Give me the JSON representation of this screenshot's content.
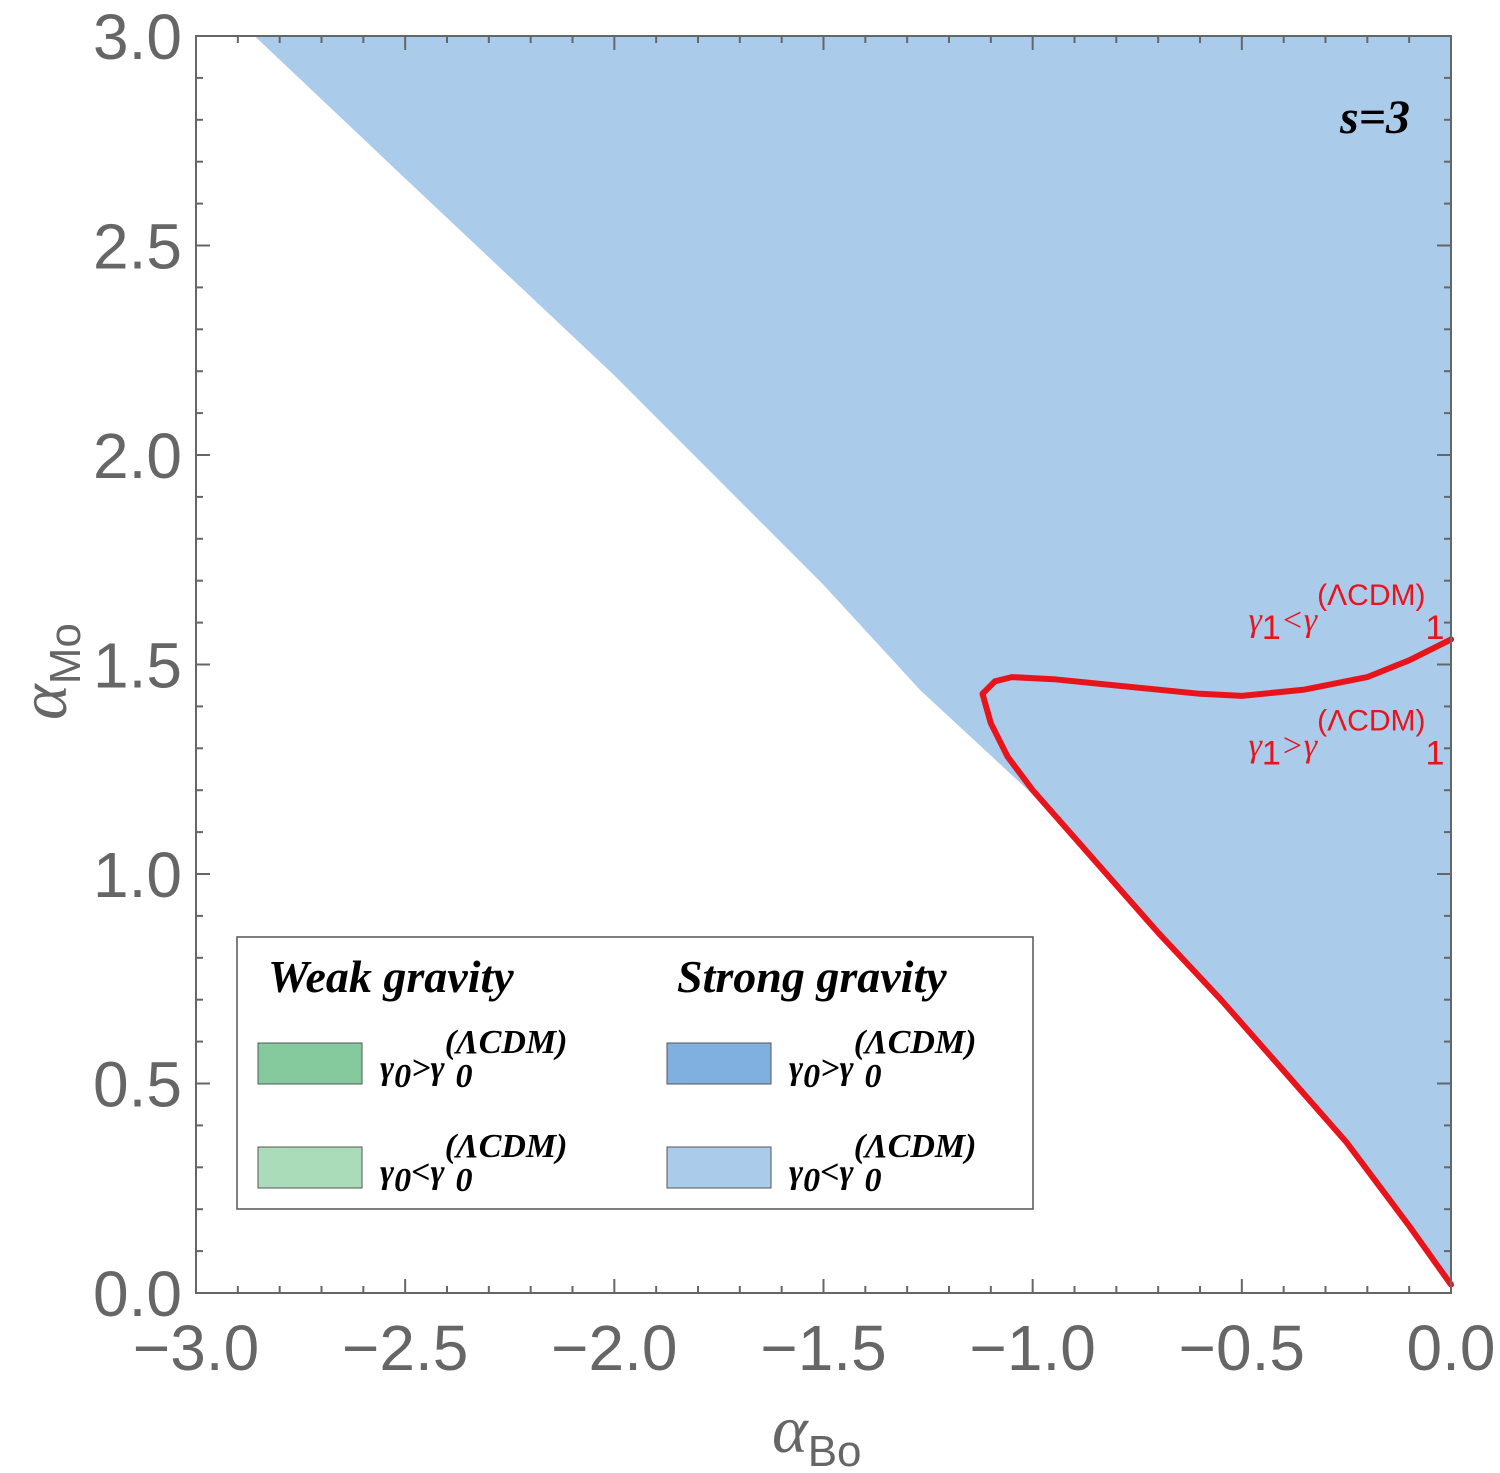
{
  "chart_data": {
    "type": "region",
    "title": "",
    "panel_label": "s=3",
    "xlabel": {
      "symbol": "α",
      "subscript": "Bo"
    },
    "ylabel": {
      "symbol": "α",
      "subscript": "Mo"
    },
    "xlim": [
      -3.0,
      0.0
    ],
    "ylim": [
      0.0,
      3.0
    ],
    "xticks": [
      -3.0,
      -2.5,
      -2.0,
      -1.5,
      -1.0,
      -0.5,
      0.0
    ],
    "xtick_labels": [
      "−3.0",
      "−2.5",
      "−2.0",
      "−1.5",
      "−1.0",
      "−0.5",
      "0.0"
    ],
    "yticks": [
      0.0,
      0.5,
      1.0,
      1.5,
      2.0,
      2.5,
      3.0
    ],
    "ytick_labels": [
      "0.0",
      "0.5",
      "1.0",
      "1.5",
      "2.0",
      "2.5",
      "3.0"
    ],
    "grid": false,
    "regions": [
      {
        "name": "Strong gravity, γ0 < γ0(ΛCDM)",
        "color": "#abcbea",
        "boundary": [
          [
            -2.86,
            3.0
          ],
          [
            -2.5,
            2.66
          ],
          [
            -2.0,
            2.19
          ],
          [
            -1.5,
            1.69
          ],
          [
            -1.27,
            1.44
          ],
          [
            -1.0,
            1.19
          ],
          [
            -0.86,
            1.04
          ],
          [
            -0.55,
            0.7
          ],
          [
            -0.25,
            0.35
          ],
          [
            0.0,
            0.02
          ],
          [
            0.0,
            3.0
          ]
        ]
      }
    ],
    "curves": [
      {
        "name": "γ1 = γ1(ΛCDM) boundary",
        "color": "#e8141c",
        "points": [
          [
            0.0,
            0.02
          ],
          [
            -0.1,
            0.16
          ],
          [
            -0.25,
            0.36
          ],
          [
            -0.4,
            0.53
          ],
          [
            -0.55,
            0.7
          ],
          [
            -0.7,
            0.86
          ],
          [
            -0.85,
            1.03
          ],
          [
            -1.0,
            1.2
          ],
          [
            -1.06,
            1.28
          ],
          [
            -1.1,
            1.36
          ],
          [
            -1.12,
            1.43
          ],
          [
            -1.09,
            1.46
          ],
          [
            -1.05,
            1.47
          ],
          [
            -0.95,
            1.465
          ],
          [
            -0.8,
            1.45
          ],
          [
            -0.6,
            1.43
          ],
          [
            -0.5,
            1.425
          ],
          [
            -0.35,
            1.44
          ],
          [
            -0.2,
            1.47
          ],
          [
            -0.1,
            1.51
          ],
          [
            0.0,
            1.56
          ]
        ]
      }
    ],
    "annotations": [
      {
        "text": "γ1<γ1(ΛCDM)",
        "base": "γ",
        "base_sub": "1",
        "op": "<",
        "rhs": "γ",
        "rhs_sub": "1",
        "rhs_sup": "(ΛCDM)",
        "color": "#e8141c",
        "x": -0.25,
        "y": 1.58
      },
      {
        "text": "γ1>γ1(ΛCDM)",
        "base": "γ",
        "base_sub": "1",
        "op": ">",
        "rhs": "γ",
        "rhs_sub": "1",
        "rhs_sup": "(ΛCDM)",
        "color": "#e8141c",
        "x": -0.25,
        "y": 1.28
      }
    ],
    "legend": {
      "placement": "bottom-left",
      "groups": [
        {
          "title": "Weak gravity",
          "entries": [
            {
              "op": ">",
              "label": "γ0>γ0(ΛCDM)",
              "swatch": "#84ca9c"
            },
            {
              "op": "<",
              "label": "γ0<γ0(ΛCDM)",
              "swatch": "#abdcb9"
            }
          ]
        },
        {
          "title": "Strong gravity",
          "entries": [
            {
              "op": ">",
              "label": "γ0>γ0(ΛCDM)",
              "swatch": "#7fb0df"
            },
            {
              "op": "<",
              "label": "γ0<γ0(ΛCDM)",
              "swatch": "#abcbea"
            }
          ]
        }
      ],
      "symbol": "γ",
      "subscript": "0",
      "superscript": "(ΛCDM)"
    }
  }
}
